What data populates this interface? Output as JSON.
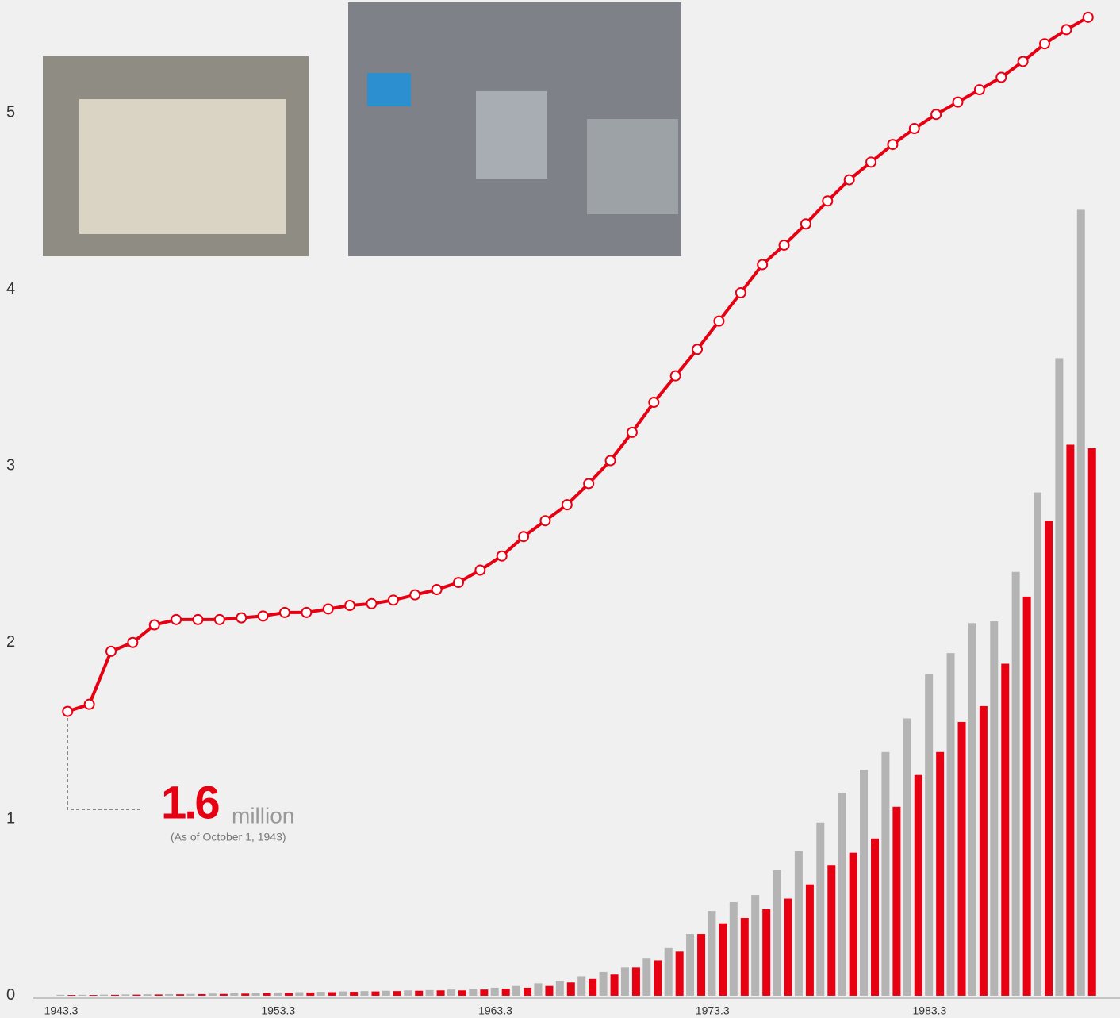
{
  "chart_data": {
    "type": "line_bar",
    "x": [
      1943.6,
      1944.6,
      1945.6,
      1946.6,
      1947.6,
      1948.6,
      1949.6,
      1950.6,
      1951.6,
      1952.6,
      1953.6,
      1954.6,
      1955.6,
      1956.6,
      1957.6,
      1958.6,
      1959.6,
      1960.6,
      1961.6,
      1962.6,
      1963.6,
      1964.6,
      1965.6,
      1966.6,
      1967.6,
      1968.6,
      1969.6,
      1970.6,
      1971.6,
      1972.6,
      1973.6,
      1974.6,
      1975.6,
      1976.6,
      1977.6,
      1978.6,
      1979.6,
      1980.6,
      1981.6,
      1982.6,
      1983.6,
      1984.6,
      1985.6,
      1986.6,
      1987.6,
      1988.6,
      1989.6,
      1990.6
    ],
    "series": [
      {
        "type": "line",
        "color": "#e60012",
        "values": [
          1.61,
          1.65,
          1.95,
          2.0,
          2.1,
          2.13,
          2.13,
          2.13,
          2.14,
          2.15,
          2.17,
          2.17,
          2.19,
          2.21,
          2.22,
          2.24,
          2.27,
          2.3,
          2.34,
          2.41,
          2.49,
          2.6,
          2.69,
          2.78,
          2.9,
          3.03,
          3.19,
          3.36,
          3.51,
          3.66,
          3.82,
          3.98,
          4.14,
          4.25,
          4.37,
          4.5,
          4.62,
          4.72,
          4.82,
          4.91,
          4.99,
          5.06,
          5.13,
          5.2,
          5.29,
          5.39,
          5.47,
          5.54
        ]
      },
      {
        "type": "bar",
        "color": "#b4b4b4",
        "values": [
          0.005,
          0.005,
          0.006,
          0.007,
          0.008,
          0.009,
          0.01,
          0.012,
          0.014,
          0.016,
          0.018,
          0.02,
          0.022,
          0.024,
          0.026,
          0.028,
          0.03,
          0.032,
          0.035,
          0.04,
          0.045,
          0.055,
          0.07,
          0.085,
          0.11,
          0.135,
          0.16,
          0.21,
          0.27,
          0.35,
          0.48,
          0.53,
          0.57,
          0.71,
          0.82,
          0.98,
          1.15,
          1.28,
          1.38,
          1.57,
          1.82,
          1.94,
          2.11,
          2.12,
          2.4,
          2.85,
          3.61,
          4.45
        ]
      },
      {
        "type": "bar",
        "color": "#e60012",
        "values": [
          0.004,
          0.004,
          0.005,
          0.006,
          0.007,
          0.008,
          0.009,
          0.01,
          0.012,
          0.014,
          0.016,
          0.018,
          0.02,
          0.022,
          0.024,
          0.026,
          0.028,
          0.03,
          0.03,
          0.035,
          0.04,
          0.045,
          0.055,
          0.075,
          0.095,
          0.12,
          0.16,
          0.2,
          0.25,
          0.35,
          0.41,
          0.44,
          0.49,
          0.55,
          0.63,
          0.74,
          0.81,
          0.89,
          1.07,
          1.25,
          1.38,
          1.55,
          1.64,
          1.88,
          2.26,
          2.69,
          3.12,
          3.1
        ]
      }
    ],
    "xlim": [
      1942.02,
      1992.07
    ],
    "xticks": [
      1943.3,
      1953.3,
      1963.3,
      1973.3,
      1983.3
    ],
    "ylim": [
      -0.126,
      5.638
    ],
    "yticks": [
      0,
      1,
      2,
      3,
      4,
      5
    ],
    "annotation": {
      "value": 1.6,
      "unit": "million",
      "note": "(As of October 1, 1943)"
    }
  }
}
